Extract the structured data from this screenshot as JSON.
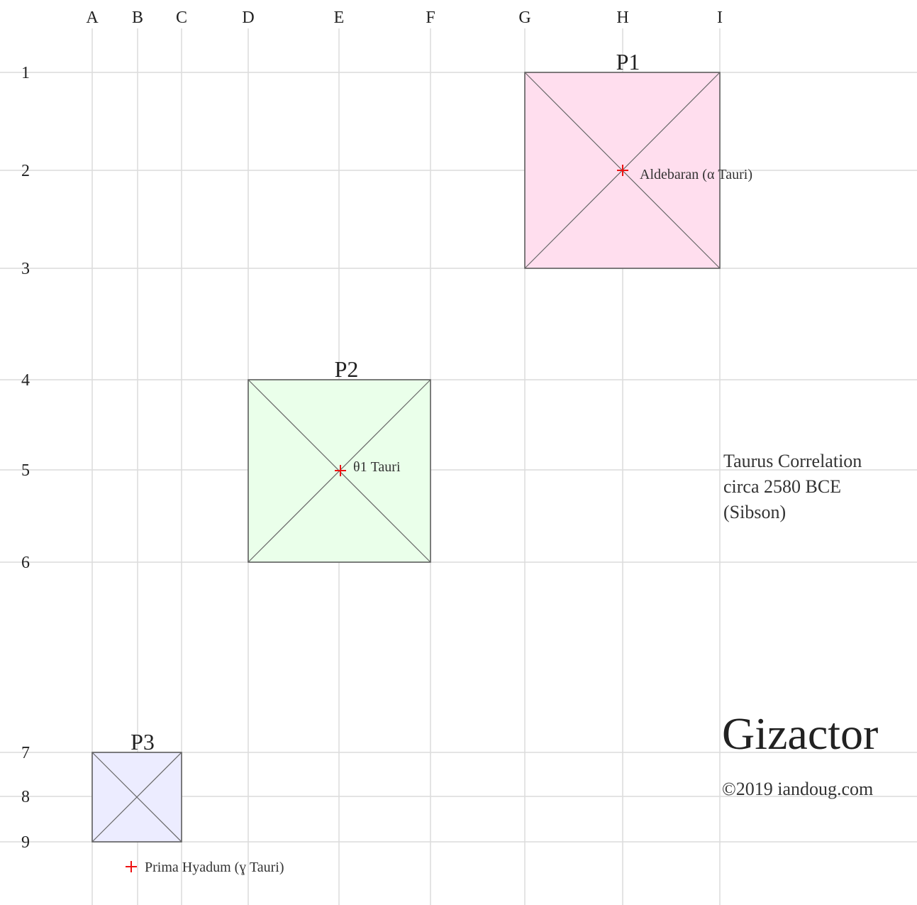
{
  "columns": [
    "A",
    "B",
    "C",
    "D",
    "E",
    "F",
    "G",
    "H",
    "I"
  ],
  "rows": [
    "1",
    "2",
    "3",
    "4",
    "5",
    "6",
    "7",
    "8",
    "9"
  ],
  "pyramids": [
    {
      "label": "P1"
    },
    {
      "label": "P2"
    },
    {
      "label": "P3"
    }
  ],
  "stars": [
    {
      "label": "Aldebaran (α Tauri)"
    },
    {
      "label": "θ1 Tauri"
    },
    {
      "label": "Prima Hyadum (ɣ Tauri)"
    }
  ],
  "note": [
    "Taurus Correlation",
    "circa 2580 BCE",
    "(Sibson)"
  ],
  "title": "Gizactor",
  "copyright": "©2019 iandoug.com"
}
